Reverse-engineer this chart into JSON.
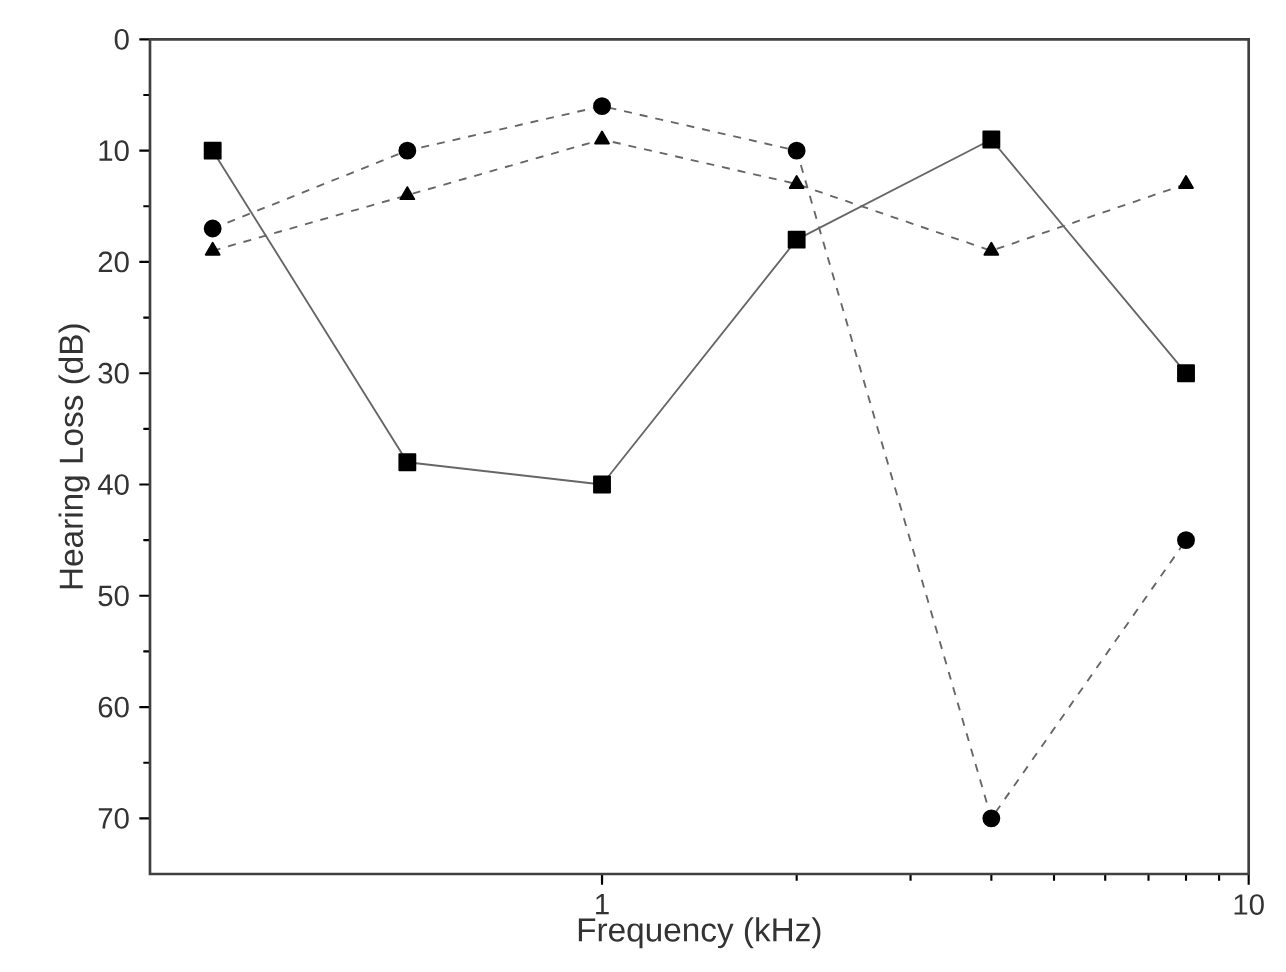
{
  "chart_data": {
    "type": "line",
    "xlabel": "Frequency (kHz)",
    "ylabel": "Hearing Loss (dB)",
    "log": "x",
    "x": [
      0.25,
      0.5,
      1,
      2,
      4,
      8
    ],
    "xlim": [
      0.2,
      10
    ],
    "xticks": [
      1,
      10
    ],
    "ylim": [
      75,
      0
    ],
    "yticks": [
      0,
      10,
      20,
      30,
      40,
      50,
      60,
      70
    ],
    "series": [
      {
        "color": "#000000",
        "marker": "square",
        "line_style": "solid",
        "values": [
          10,
          38,
          40,
          18,
          9,
          30
        ]
      },
      {
        "color": "#000000",
        "marker": "circle",
        "line_style": "dashed",
        "values": [
          17,
          10,
          6,
          10,
          70,
          45
        ]
      },
      {
        "color": "#000000",
        "marker": "triangle",
        "line_style": "dashed",
        "values": [
          19,
          14,
          9,
          13,
          19,
          13
        ]
      }
    ]
  }
}
